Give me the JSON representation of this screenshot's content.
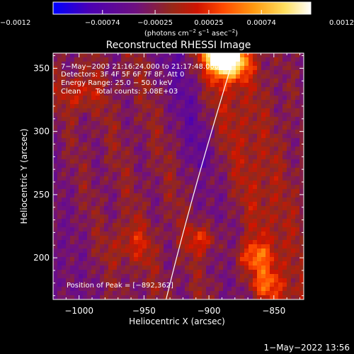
{
  "chart_data": {
    "type": "heatmap",
    "title": "Reconstructed RHESSI Image",
    "xlabel": "Heliocentric X (arcsec)",
    "ylabel": "Heliocentric Y (arcsec)",
    "xlim": [
      -1020,
      -827
    ],
    "ylim": [
      167,
      362
    ],
    "xticks": [
      -1000,
      -950,
      -900,
      -850
    ],
    "yticks": [
      200,
      250,
      300,
      350
    ],
    "xtick_labels": [
      "−1000",
      "−950",
      "−900",
      "−850"
    ],
    "ytick_labels": [
      "200",
      "250",
      "300",
      "350"
    ],
    "colorbar": {
      "range": [
        -0.0012,
        0.0012
      ],
      "ticks": [
        -0.0012,
        -0.00074,
        -0.00025,
        0.00025,
        0.00074,
        0.0012
      ],
      "tick_labels": [
        "−0.0012",
        "−0.00074",
        "−0.00025",
        "0.00025",
        "0.00074",
        "0.0012"
      ],
      "units_prefix": "(photons cm",
      "units_exp1": "−2",
      "units_mid1": " s",
      "units_exp2": "−1",
      "units_mid2": " asec",
      "units_exp3": "−2",
      "units_suffix": ")",
      "colors": [
        "#0000ff",
        "#4b00b4",
        "#6e1080",
        "#962818",
        "#d01400",
        "#ff4a00",
        "#ff9a10",
        "#ffe060",
        "#ffffff"
      ]
    },
    "annotations": {
      "time_range": "7−May−2003 21:16:24.000 to 21:17:48.000",
      "detectors": "Detectors: 3F 4F 5F 6F 7F 8F, Att 0",
      "energy": "Energy Range: 25.0 − 50.0 keV",
      "clean_label": "Clean",
      "total_counts": "Total counts: 3.08E+03",
      "peak": "Position of Peak = [−892,362]"
    },
    "peak_position": [
      -892,
      362
    ],
    "limb": [
      [
        -933,
        167
      ],
      [
        -925,
        200
      ],
      [
        -912,
        250
      ],
      [
        -898,
        300
      ],
      [
        -880,
        362
      ]
    ]
  },
  "footer": {
    "timestamp": "1−May−2022 13:56"
  }
}
